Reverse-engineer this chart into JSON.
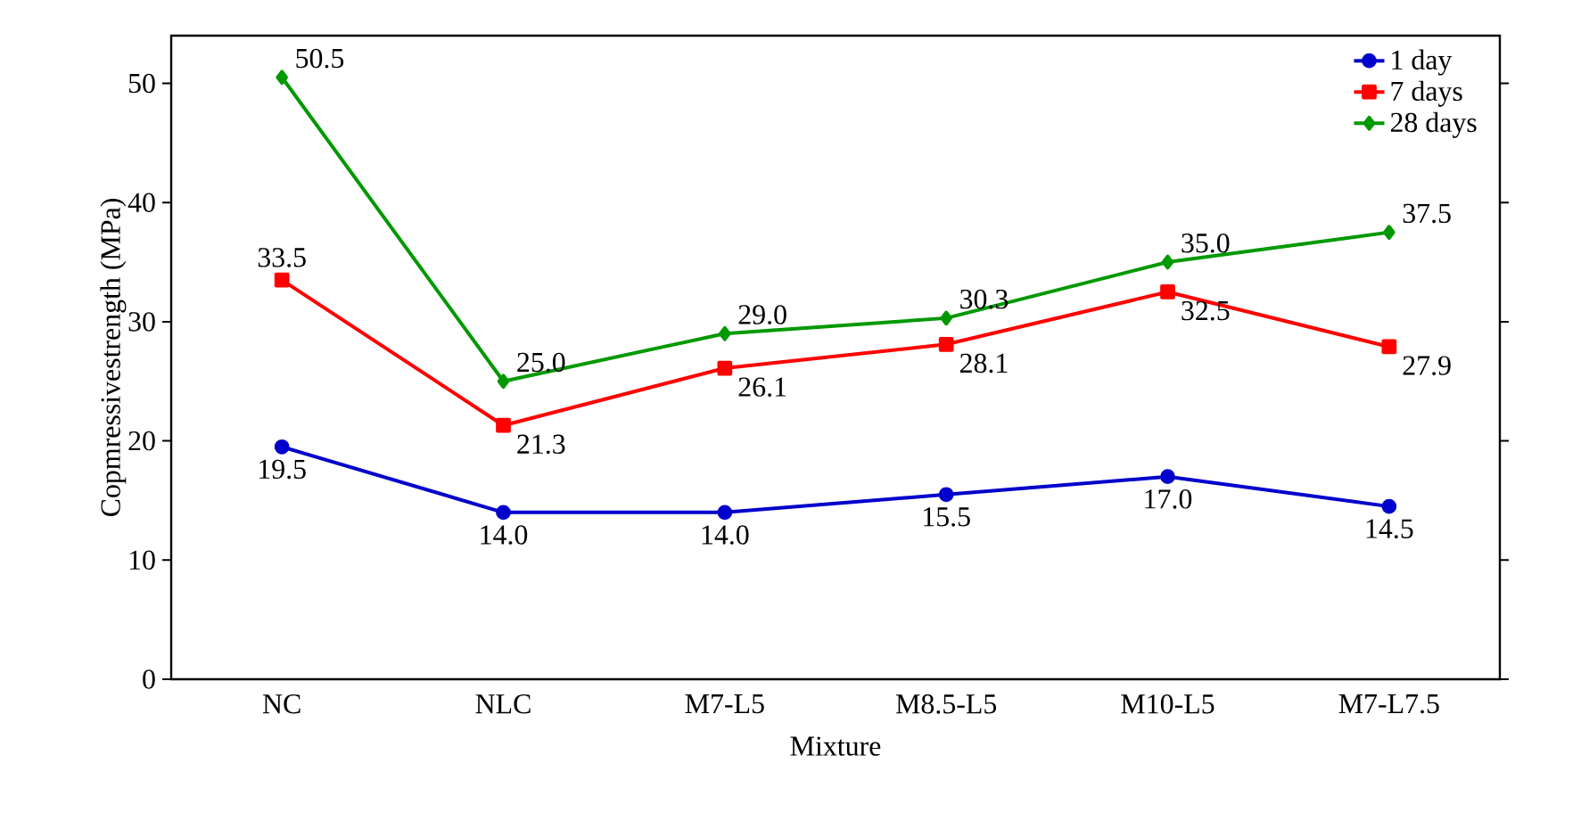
{
  "chart_data": {
    "type": "line",
    "xlabel": "Mixture",
    "ylabel": "Copmressivestrength (MPa)",
    "categories": [
      "NC",
      "NLC",
      "M7-L5",
      "M8.5-L5",
      "M10-L5",
      "M7-L7.5"
    ],
    "series": [
      {
        "name": "1 day",
        "color": "#0000cc",
        "marker": "circle",
        "values": [
          19.5,
          14.0,
          14.0,
          15.5,
          17.0,
          14.5
        ],
        "value_labels": [
          "19.5",
          "14.0",
          "14.0",
          "15.5",
          "17.0",
          "14.5"
        ]
      },
      {
        "name": "7 days",
        "color": "#ff0000",
        "marker": "square",
        "values": [
          33.5,
          21.3,
          26.1,
          28.1,
          32.5,
          27.9
        ],
        "value_labels": [
          "33.5",
          "21.3",
          "26.1",
          "28.1",
          "32.5",
          "27.9"
        ]
      },
      {
        "name": "28 days",
        "color": "#009900",
        "marker": "diamond",
        "values": [
          50.5,
          25.0,
          29.0,
          30.3,
          35.0,
          37.5
        ],
        "value_labels": [
          "50.5",
          "25.0",
          "29.0",
          "30.3",
          "35.0",
          "37.5"
        ]
      }
    ],
    "ylim": [
      0,
      54
    ],
    "yticks": [
      0,
      10,
      20,
      30,
      40,
      50
    ],
    "grid": false,
    "legend": "top right",
    "line_style": "solid"
  }
}
